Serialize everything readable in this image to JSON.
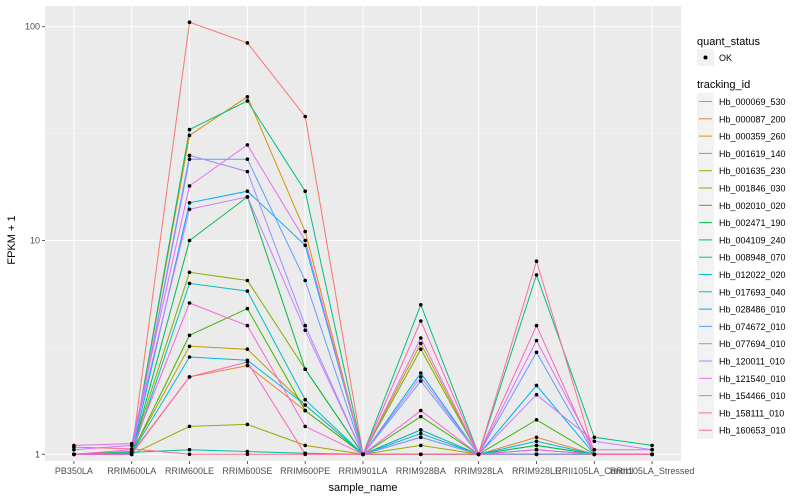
{
  "chart_data": {
    "type": "line",
    "xlabel": "sample_name",
    "ylabel": "FPKM + 1",
    "y_scale": "log10",
    "ylim": [
      0.93,
      125
    ],
    "y_ticks": [
      {
        "value": 1,
        "label": "1"
      },
      {
        "value": 10,
        "label": "10"
      },
      {
        "value": 100,
        "label": "100"
      }
    ],
    "grid": true,
    "legend_placement": "right",
    "categories": [
      "PB350LA",
      "RRIM600LA",
      "RRIM600LE",
      "RRIM600SE",
      "RRIM600PE",
      "RRIM901LA",
      "RRIM928BA",
      "RRIM928LA",
      "RRIM928LE",
      "RRII105LA_Control",
      "RRII105LA_Stressed"
    ],
    "point_legend": {
      "title": "quant_status",
      "items": [
        {
          "label": "OK",
          "marker": "dot"
        }
      ]
    },
    "legend_title": "tracking_id",
    "series": [
      {
        "name": "Hb_000069_530",
        "color": "#F8766D",
        "values": [
          1.0,
          1.02,
          105,
          84,
          38,
          1.0,
          1.0,
          1.0,
          1.0,
          1.0,
          1.0
        ]
      },
      {
        "name": "Hb_000087_200",
        "color": "#EA8331",
        "values": [
          1.0,
          1.01,
          2.3,
          2.6,
          1.6,
          1.0,
          1.3,
          1.0,
          1.2,
          1.0,
          1.0
        ]
      },
      {
        "name": "Hb_000359_260",
        "color": "#D89000",
        "values": [
          1.0,
          1.0,
          31,
          47,
          11,
          1.0,
          1.0,
          1.0,
          1.0,
          1.0,
          1.0
        ]
      },
      {
        "name": "Hb_001619_140",
        "color": "#C09B00",
        "values": [
          1.0,
          1.02,
          3.2,
          3.1,
          1.7,
          1.0,
          3.3,
          1.0,
          1.0,
          1.0,
          1.0
        ]
      },
      {
        "name": "Hb_001635_230",
        "color": "#A3A500",
        "values": [
          1.0,
          1.0,
          1.35,
          1.38,
          1.1,
          1.0,
          1.1,
          1.0,
          1.0,
          1.0,
          1.0
        ]
      },
      {
        "name": "Hb_001846_030",
        "color": "#7CAE00",
        "values": [
          1.0,
          1.03,
          7.1,
          6.5,
          2.5,
          1.0,
          3.1,
          1.0,
          1.1,
          1.0,
          1.0
        ]
      },
      {
        "name": "Hb_002010_020",
        "color": "#39B600",
        "values": [
          1.0,
          1.01,
          3.6,
          4.8,
          1.6,
          1.0,
          1.5,
          1.0,
          1.45,
          1.0,
          1.0
        ]
      },
      {
        "name": "Hb_002471_190",
        "color": "#00BB4E",
        "values": [
          1.0,
          1.0,
          10,
          16,
          2.5,
          1.0,
          1.2,
          1.0,
          1.1,
          1.0,
          1.0
        ]
      },
      {
        "name": "Hb_004109_240",
        "color": "#00BF7D",
        "values": [
          1.0,
          1.0,
          33,
          45,
          17,
          1.0,
          5.0,
          1.0,
          6.9,
          1.2,
          1.1
        ]
      },
      {
        "name": "Hb_008948_070",
        "color": "#00C1A3",
        "values": [
          1.0,
          1.02,
          1.05,
          1.03,
          1.01,
          1.0,
          1.0,
          1.0,
          1.0,
          1.0,
          1.0
        ]
      },
      {
        "name": "Hb_012022_020",
        "color": "#00BFC4",
        "values": [
          1.0,
          1.0,
          6.3,
          5.8,
          1.8,
          1.0,
          1.3,
          1.0,
          1.05,
          1.0,
          1.0
        ]
      },
      {
        "name": "Hb_017693_040",
        "color": "#00B9E3",
        "values": [
          1.0,
          1.01,
          2.85,
          2.75,
          1.7,
          1.0,
          1.25,
          1.0,
          1.15,
          1.0,
          1.0
        ]
      },
      {
        "name": "Hb_028486_010",
        "color": "#00ADFA",
        "values": [
          1.0,
          1.0,
          15,
          17,
          9.5,
          1.0,
          2.4,
          1.0,
          2.1,
          1.0,
          1.0
        ]
      },
      {
        "name": "Hb_074672_010",
        "color": "#619CFF",
        "values": [
          1.0,
          1.0,
          24,
          24,
          6.5,
          1.0,
          2.2,
          1.0,
          3.0,
          1.0,
          1.0
        ]
      },
      {
        "name": "Hb_077694_010",
        "color": "#9F8CFF",
        "values": [
          1.0,
          1.0,
          25,
          21,
          4.0,
          1.0,
          1.2,
          1.0,
          1.0,
          1.0,
          1.0
        ]
      },
      {
        "name": "Hb_120011_010",
        "color": "#C77CFF",
        "values": [
          1.05,
          1.1,
          14,
          16,
          3.8,
          1.0,
          2.3,
          1.0,
          1.9,
          1.15,
          1.05
        ]
      },
      {
        "name": "Hb_121540_010",
        "color": "#E76BF3",
        "values": [
          1.1,
          1.12,
          18,
          28,
          10,
          1.0,
          3.5,
          1.0,
          3.4,
          1.05,
          1.05
        ]
      },
      {
        "name": "Hb_154466_010",
        "color": "#FA62DB",
        "values": [
          1.0,
          1.05,
          5.1,
          4.0,
          1.35,
          1.0,
          1.6,
          1.0,
          1.05,
          1.0,
          1.0
        ]
      },
      {
        "name": "Hb_158111_010",
        "color": "#FF62BC",
        "values": [
          1.0,
          1.0,
          2.3,
          2.7,
          1.0,
          1.0,
          4.2,
          1.0,
          4.0,
          1.0,
          1.0
        ]
      },
      {
        "name": "Hb_160653_010",
        "color": "#FF6C91",
        "values": [
          1.08,
          1.06,
          1.0,
          1.0,
          1.0,
          1.0,
          1.0,
          1.0,
          8.0,
          1.0,
          1.0
        ]
      }
    ]
  }
}
